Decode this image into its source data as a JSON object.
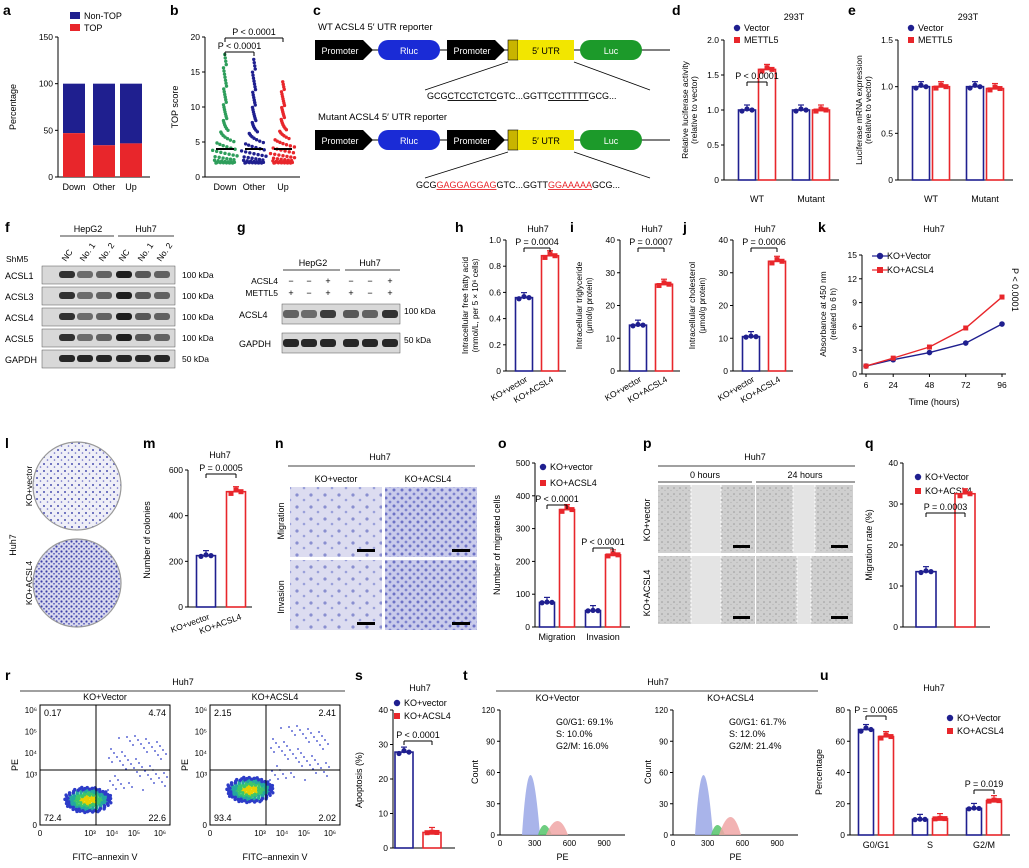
{
  "colors": {
    "blue": "#1f1f8f",
    "red": "#e8262b",
    "green": "#2e9e5b",
    "rluc": "#1a2bd6",
    "utr": "#f2e600",
    "luc": "#1c9a2a",
    "flowBlue": "#9aa7e6",
    "flowGreen": "#55c46a",
    "flowPink": "#f0a6a6"
  },
  "panels": {
    "a": {
      "letter": "a",
      "ylabel": "Percentage",
      "legend": [
        "Non-TOP",
        "TOP"
      ],
      "categories": [
        "Down",
        "Other",
        "Up"
      ],
      "top": [
        47,
        34,
        36
      ],
      "ylim": [
        0,
        150
      ],
      "yticks": [
        "0",
        "50",
        "100",
        "150"
      ]
    },
    "b": {
      "letter": "b",
      "ylabel": "TOP score",
      "categories": [
        "Down",
        "Other",
        "Up"
      ],
      "ylim": [
        0,
        20
      ],
      "yticks": [
        "0",
        "5",
        "10",
        "15",
        "20"
      ],
      "p1": "P < 0.0001",
      "p2": "P < 0.0001"
    },
    "c": {
      "letter": "c",
      "wt_title": "WT ACSL4 5′ UTR reporter",
      "mut_title": "Mutant ACSL4 5′ UTR reporter",
      "blocks": [
        "Promoter",
        "Rluc",
        "Promoter",
        "5′ UTR",
        "Luc"
      ],
      "wt_seq": [
        "GCG",
        "CTCCTCTC",
        "GTC...GGTT",
        "CCTTTTT",
        "GCG..."
      ],
      "mut_seq": [
        "GCG",
        "GAGGAGGAG",
        "GTC...GGTT",
        "GGAAAAA",
        "GCG..."
      ]
    },
    "d": {
      "letter": "d",
      "title": "293T",
      "ylabel": "Relative luciferase activity",
      "ylabel2": "(relative to vector)",
      "legend": [
        "Vector",
        "METTL5"
      ],
      "groups": [
        "WT",
        "Mutant"
      ],
      "vector": [
        1.0,
        1.0
      ],
      "mettl5": [
        1.58,
        1.0
      ],
      "ylim": [
        0,
        2.0
      ],
      "yticks": [
        "0",
        "0.5",
        "1.0",
        "1.5",
        "2.0"
      ],
      "p": "P < 0.0001"
    },
    "e": {
      "letter": "e",
      "title": "293T",
      "ylabel": "Luciferase mRNA expression",
      "ylabel2": "(relative to vector)",
      "legend": [
        "Vector",
        "METTL5"
      ],
      "groups": [
        "WT",
        "Mutant"
      ],
      "vector": [
        1.0,
        1.0
      ],
      "mettl5": [
        1.0,
        0.98
      ],
      "ylim": [
        0,
        1.5
      ],
      "yticks": [
        "0",
        "0.5",
        "1.0",
        "1.5"
      ]
    },
    "f": {
      "letter": "f",
      "cells": [
        "HepG2",
        "Huh7"
      ],
      "shm": "ShM5",
      "lanes": [
        "NC",
        "No. 1",
        "No. 2",
        "NC",
        "No. 1",
        "No. 2"
      ],
      "rows": [
        "ACSL1",
        "ACSL3",
        "ACSL4",
        "ACSL5",
        "GAPDH"
      ],
      "kda": [
        "100 kDa",
        "100 kDa",
        "100 kDa",
        "100 kDa",
        "50 kDa"
      ]
    },
    "g": {
      "letter": "g",
      "cells": [
        "HepG2",
        "Huh7"
      ],
      "rowlabels": [
        "ACSL4",
        "METTL5"
      ],
      "acsl4": [
        "−",
        "−",
        "+",
        "−",
        "−",
        "+"
      ],
      "mettl5": [
        "+",
        "−",
        "+",
        "+",
        "−",
        "+"
      ],
      "rows": [
        "ACSL4",
        "GAPDH"
      ],
      "kda": [
        "100 kDa",
        "50 kDa"
      ]
    },
    "h": {
      "letter": "h",
      "title": "Huh7",
      "ylabel": "Intracellular free fatty acid",
      "ylabel2": "(mmol/L, per 5 × 10⁶ cells)",
      "categories": [
        "KO+vector",
        "KO+ACSL4"
      ],
      "values": [
        0.56,
        0.88
      ],
      "ylim": [
        0,
        1.0
      ],
      "yticks": [
        "0",
        "0.2",
        "0.4",
        "0.6",
        "0.8",
        "1.0"
      ],
      "p": "P = 0.0004"
    },
    "i": {
      "letter": "i",
      "title": "Huh7",
      "ylabel": "Intracellular triglyceride",
      "ylabel2": "(μmol/g protein)",
      "categories": [
        "KO+vector",
        "KO+ACSL4"
      ],
      "values": [
        14,
        26.5
      ],
      "ylim": [
        0,
        40
      ],
      "yticks": [
        "0",
        "10",
        "20",
        "30",
        "40"
      ],
      "p": "P = 0.0007"
    },
    "j": {
      "letter": "j",
      "title": "Huh7",
      "ylabel": "Intracellular cholesterol",
      "ylabel2": "(μmol/g protein)",
      "categories": [
        "KO+vector",
        "KO+ACSL4"
      ],
      "values": [
        10.5,
        33.5
      ],
      "ylim": [
        0,
        40
      ],
      "yticks": [
        "0",
        "10",
        "20",
        "30",
        "40"
      ],
      "p": "P = 0.0006"
    },
    "k": {
      "letter": "k",
      "title": "Huh7",
      "ylabel": "Absorbance at 450 nm",
      "ylabel2": "(related to 6 h)",
      "xlabel": "Time (hours)",
      "legend": [
        "KO+Vector",
        "KO+ACSL4"
      ],
      "x": [
        6,
        24,
        48,
        72,
        96
      ],
      "vector": [
        1.0,
        1.8,
        2.7,
        3.9,
        6.3
      ],
      "acsl4": [
        1.0,
        2.0,
        3.4,
        5.8,
        9.7
      ],
      "ylim": [
        0,
        15
      ],
      "yticks": [
        "0",
        "3",
        "6",
        "9",
        "12",
        "15"
      ],
      "p": "P < 0.0001"
    },
    "l": {
      "letter": "l",
      "side": "Huh7",
      "rows": [
        "KO+vector",
        "KO+ACSL4"
      ]
    },
    "m": {
      "letter": "m",
      "title": "Huh7",
      "ylabel": "Number of colonies",
      "categories": [
        "KO+vector",
        "KO+ACSL4"
      ],
      "values": [
        225,
        505
      ],
      "ylim": [
        0,
        600
      ],
      "yticks": [
        "0",
        "200",
        "400",
        "600"
      ],
      "p": "P = 0.0005"
    },
    "n": {
      "letter": "n",
      "title": "Huh7",
      "cols": [
        "KO+vector",
        "KO+ACSL4"
      ],
      "rows": [
        "Migration",
        "Invasion"
      ]
    },
    "o": {
      "letter": "o",
      "ylabel": "Number of migrated cells",
      "legend": [
        "KO+vector",
        "KO+ACSL4"
      ],
      "groups": [
        "Migration",
        "Invasion"
      ],
      "vector": [
        75,
        50
      ],
      "acsl4": [
        358,
        220
      ],
      "ylim": [
        0,
        500
      ],
      "yticks": [
        "0",
        "100",
        "200",
        "300",
        "400",
        "500"
      ],
      "p1": "P < 0.0001",
      "p2": "P < 0.0001"
    },
    "p": {
      "letter": "p",
      "title": "Huh7",
      "cols": [
        "0 hours",
        "24 hours"
      ],
      "rows": [
        "KO+vector",
        "KO+ACSL4"
      ]
    },
    "q": {
      "letter": "q",
      "ylabel": "Migration rate (%)",
      "legend": [
        "KO+Vector",
        "KO+ACSL4"
      ],
      "values": [
        13.5,
        32.5
      ],
      "ylim": [
        0,
        40
      ],
      "yticks": [
        "0",
        "10",
        "20",
        "30",
        "40"
      ],
      "p": "P = 0.0003"
    },
    "r": {
      "letter": "r",
      "title": "Huh7",
      "cols": [
        "KO+Vector",
        "KO+ACSL4"
      ],
      "ylabel": "PE",
      "xlabel": "FITC–annexin V",
      "ticks": [
        "0",
        "10³",
        "10⁴",
        "10⁵",
        "10⁶"
      ],
      "vector_q": [
        "0.17",
        "4.74",
        "72.4",
        "22.6"
      ],
      "acsl4_q": [
        "2.15",
        "2.41",
        "93.4",
        "2.02"
      ]
    },
    "s": {
      "letter": "s",
      "title": "Huh7",
      "ylabel": "Apoptosis (%)",
      "legend": [
        "KO+vector",
        "KO+ACSL4"
      ],
      "values": [
        27.8,
        4.5
      ],
      "ylim": [
        0,
        40
      ],
      "yticks": [
        "0",
        "10",
        "20",
        "30",
        "40"
      ],
      "p": "P < 0.0001"
    },
    "t": {
      "letter": "t",
      "title": "Huh7",
      "cols": [
        "KO+Vector",
        "KO+ACSL4"
      ],
      "ylabel": "Count",
      "xlabel": "PE",
      "yticks": [
        "0",
        "30",
        "60",
        "90",
        "120"
      ],
      "xticks": [
        "0",
        "300",
        "600",
        "900"
      ],
      "vector_stats": [
        "G0/G1: 69.1%",
        "S: 10.0%",
        "G2/M: 16.0%"
      ],
      "acsl4_stats": [
        "G0/G1: 61.7%",
        "S: 12.0%",
        "G2/M: 21.4%"
      ]
    },
    "u": {
      "letter": "u",
      "title": "Huh7",
      "ylabel": "Percentage",
      "legend": [
        "KO+Vector",
        "KO+ACSL4"
      ],
      "groups": [
        "G0/G1",
        "S",
        "G2/M"
      ],
      "vector": [
        67.5,
        10,
        17
      ],
      "acsl4": [
        63,
        10.5,
        22
      ],
      "ylim": [
        0,
        80
      ],
      "yticks": [
        "0",
        "20",
        "40",
        "60",
        "80"
      ],
      "p1": "P = 0.0065",
      "p2": "P = 0.019"
    }
  }
}
